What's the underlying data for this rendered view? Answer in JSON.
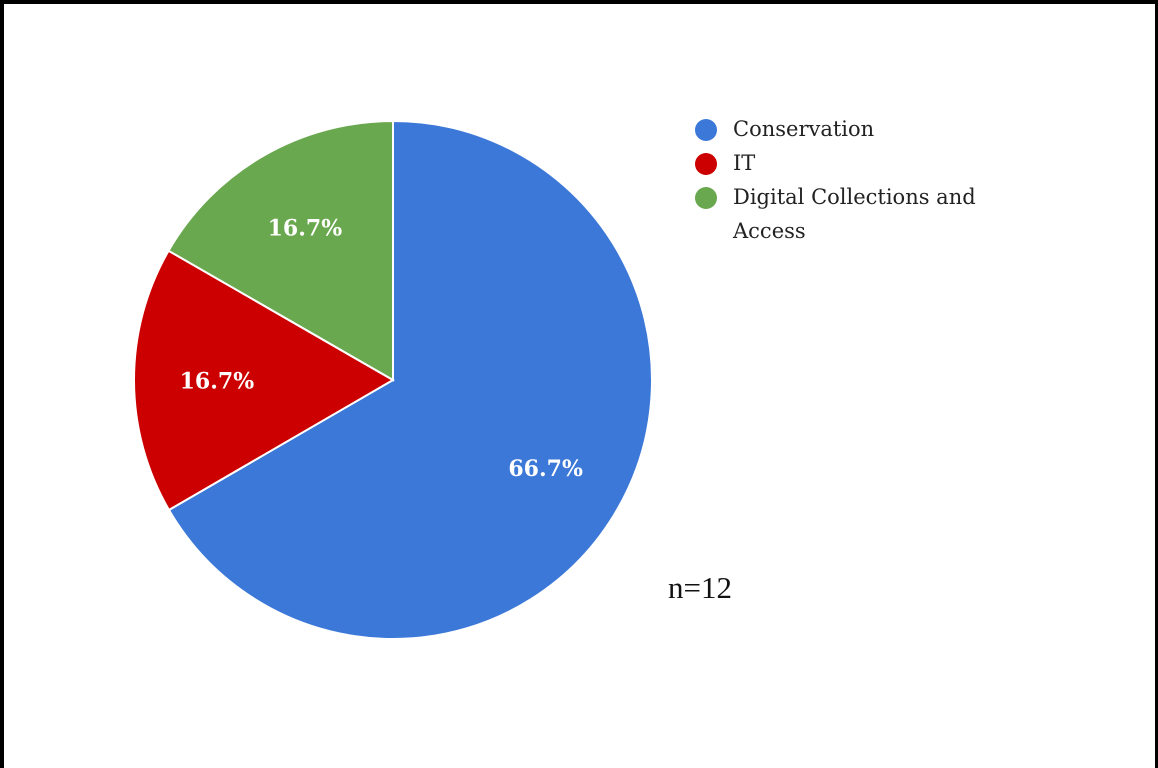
{
  "chart_data": {
    "type": "pie",
    "slices": [
      {
        "label": "Conservation",
        "value": 66.7,
        "display": "66.7%",
        "color": "#3c78d8"
      },
      {
        "label": "IT",
        "value": 16.7,
        "display": "16.7%",
        "color": "#cc0000"
      },
      {
        "label": "Digital Collections and Access",
        "value": 16.7,
        "display": "16.7%",
        "color": "#6aa84f"
      }
    ],
    "legend_position": "right",
    "legend": [
      {
        "label": "Conservation",
        "color": "#3c78d8"
      },
      {
        "label": "IT",
        "color": "#cc0000"
      },
      {
        "label": "Digital Collections and Access",
        "color": "#6aa84f"
      }
    ],
    "annotation": "n=12"
  }
}
